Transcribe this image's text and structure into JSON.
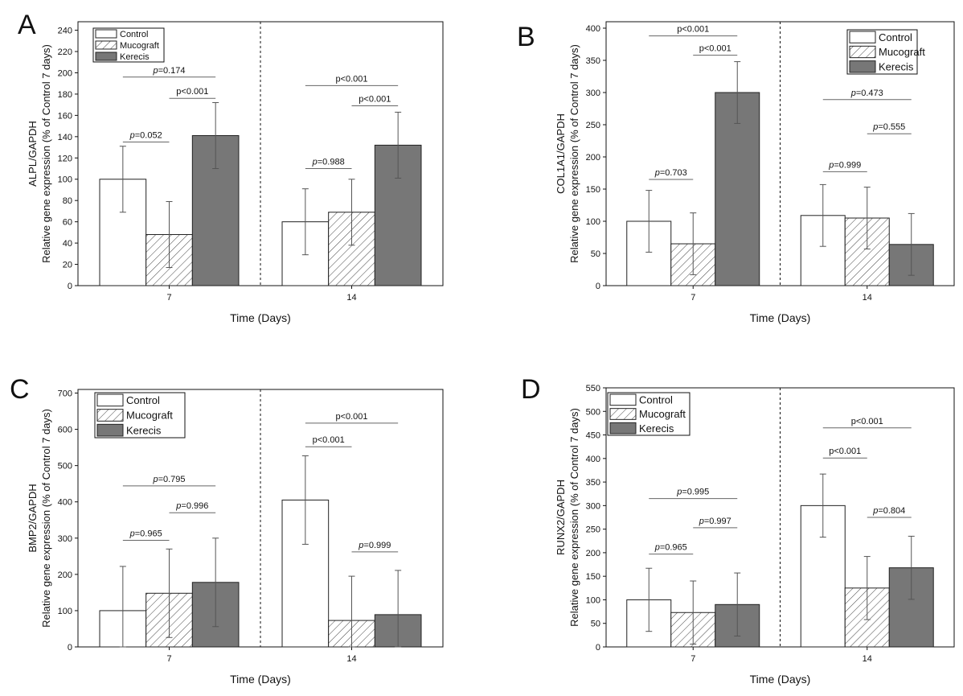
{
  "chart_data": [
    {
      "panel_letter": "A",
      "type": "bar",
      "ylabel_lines": [
        "Relative gene expression (% of Control 7 days)",
        "ALPL/GAPDH"
      ],
      "xlabel": "Time (Days)",
      "ylim": [
        0,
        248
      ],
      "yticks": [
        0,
        20,
        40,
        60,
        80,
        100,
        120,
        140,
        160,
        180,
        200,
        220,
        240
      ],
      "categories": [
        "7",
        "14"
      ],
      "legend_position": "top-left",
      "series": [
        {
          "name": "Control",
          "style": "white",
          "values": [
            100,
            60
          ],
          "errors": [
            31,
            31
          ]
        },
        {
          "name": "Mucograft",
          "style": "hatched",
          "values": [
            48,
            69
          ],
          "errors": [
            31,
            31
          ]
        },
        {
          "name": "Kerecis",
          "style": "gray",
          "values": [
            141,
            132
          ],
          "errors": [
            31,
            31
          ]
        }
      ],
      "annotations": [
        {
          "group": 0,
          "from": 0,
          "to": 1,
          "y": 135,
          "text": "=0.052",
          "italic_p": true
        },
        {
          "group": 0,
          "from": 1,
          "to": 2,
          "y": 176,
          "text": "p<0.001",
          "italic_p": false
        },
        {
          "group": 0,
          "from": 0,
          "to": 2,
          "y": 196,
          "text": "=0.174",
          "italic_p": true
        },
        {
          "group": 1,
          "from": 0,
          "to": 1,
          "y": 110,
          "text": "=0.988",
          "italic_p": true
        },
        {
          "group": 1,
          "from": 1,
          "to": 2,
          "y": 169,
          "text": "p<0.001",
          "italic_p": false
        },
        {
          "group": 1,
          "from": 0,
          "to": 2,
          "y": 188,
          "text": "p<0.001",
          "italic_p": false
        }
      ]
    },
    {
      "panel_letter": "B",
      "type": "bar",
      "ylabel_lines": [
        "Relative gene expression (% of Control 7 days)",
        "COL1A1/GAPDH"
      ],
      "xlabel": "Time (Days)",
      "ylim": [
        0,
        410
      ],
      "yticks": [
        0,
        50,
        100,
        150,
        200,
        250,
        300,
        350,
        400
      ],
      "categories": [
        "7",
        "14"
      ],
      "legend_position": "top-right",
      "series": [
        {
          "name": "Control",
          "style": "white",
          "values": [
            100,
            109
          ],
          "errors": [
            48,
            48
          ]
        },
        {
          "name": "Mucograft",
          "style": "hatched",
          "values": [
            65,
            105
          ],
          "errors": [
            48,
            48
          ]
        },
        {
          "name": "Kerecis",
          "style": "gray",
          "values": [
            300,
            64
          ],
          "errors": [
            48,
            48
          ]
        }
      ],
      "annotations": [
        {
          "group": 0,
          "from": 0,
          "to": 1,
          "y": 165,
          "text": "=0.703",
          "italic_p": true
        },
        {
          "group": 0,
          "from": 1,
          "to": 2,
          "y": 358,
          "text": "p<0.001",
          "italic_p": false
        },
        {
          "group": 0,
          "from": 0,
          "to": 2,
          "y": 388,
          "text": "p<0.001",
          "italic_p": false
        },
        {
          "group": 1,
          "from": 0,
          "to": 1,
          "y": 177,
          "text": "=0.999",
          "italic_p": true
        },
        {
          "group": 1,
          "from": 1,
          "to": 2,
          "y": 236,
          "text": "=0.555",
          "italic_p": true
        },
        {
          "group": 1,
          "from": 0,
          "to": 2,
          "y": 289,
          "text": "=0.473",
          "italic_p": true
        }
      ]
    },
    {
      "panel_letter": "C",
      "type": "bar",
      "ylabel_lines": [
        "Relative gene expression (% of Control 7 days)",
        "BMP2/GAPDH"
      ],
      "xlabel": "Time (Days)",
      "ylim": [
        0,
        710
      ],
      "yticks": [
        0,
        100,
        200,
        300,
        400,
        500,
        600,
        700
      ],
      "categories": [
        "7",
        "14"
      ],
      "legend_position": "top-left",
      "series": [
        {
          "name": "Control",
          "style": "white",
          "values": [
            100,
            405
          ],
          "errors": [
            122,
            122
          ]
        },
        {
          "name": "Mucograft",
          "style": "hatched",
          "values": [
            148,
            73
          ],
          "errors": [
            122,
            122
          ]
        },
        {
          "name": "Kerecis",
          "style": "gray",
          "values": [
            178,
            89
          ],
          "errors": [
            122,
            122
          ]
        }
      ],
      "annotations": [
        {
          "group": 0,
          "from": 0,
          "to": 1,
          "y": 294,
          "text": "=0.965",
          "italic_p": true
        },
        {
          "group": 0,
          "from": 1,
          "to": 2,
          "y": 370,
          "text": "=0.996",
          "italic_p": true
        },
        {
          "group": 0,
          "from": 0,
          "to": 2,
          "y": 444,
          "text": "=0.795",
          "italic_p": true
        },
        {
          "group": 1,
          "from": 0,
          "to": 1,
          "y": 552,
          "text": "p<0.001",
          "italic_p": false
        },
        {
          "group": 1,
          "from": 1,
          "to": 2,
          "y": 262,
          "text": "=0.999",
          "italic_p": true
        },
        {
          "group": 1,
          "from": 0,
          "to": 2,
          "y": 617,
          "text": "p<0.001",
          "italic_p": false
        }
      ]
    },
    {
      "panel_letter": "D",
      "type": "bar",
      "ylabel_lines": [
        "Relative gene expression (% of Control 7 days)",
        "RUNX2/GAPDH"
      ],
      "xlabel": "Time (Days)",
      "ylim": [
        0,
        550
      ],
      "yticks": [
        0,
        50,
        100,
        150,
        200,
        250,
        300,
        350,
        400,
        450,
        500,
        550
      ],
      "categories": [
        "7",
        "14"
      ],
      "legend_position": "top-left",
      "series": [
        {
          "name": "Control",
          "style": "white",
          "values": [
            100,
            300
          ],
          "errors": [
            67,
            67
          ]
        },
        {
          "name": "Mucograft",
          "style": "hatched",
          "values": [
            73,
            125
          ],
          "errors": [
            67,
            67
          ]
        },
        {
          "name": "Kerecis",
          "style": "gray",
          "values": [
            90,
            168
          ],
          "errors": [
            67,
            67
          ]
        }
      ],
      "annotations": [
        {
          "group": 0,
          "from": 0,
          "to": 1,
          "y": 197,
          "text": "=0.965",
          "italic_p": true
        },
        {
          "group": 0,
          "from": 1,
          "to": 2,
          "y": 253,
          "text": "=0.997",
          "italic_p": true
        },
        {
          "group": 0,
          "from": 0,
          "to": 2,
          "y": 315,
          "text": "=0.995",
          "italic_p": true
        },
        {
          "group": 1,
          "from": 0,
          "to": 1,
          "y": 401,
          "text": "p<0.001",
          "italic_p": false
        },
        {
          "group": 1,
          "from": 1,
          "to": 2,
          "y": 275,
          "text": "=0.804",
          "italic_p": true
        },
        {
          "group": 1,
          "from": 0,
          "to": 2,
          "y": 465,
          "text": "p<0.001",
          "italic_p": false
        }
      ]
    }
  ],
  "colors": {
    "control_fill": "#ffffff",
    "kerecis_fill": "#777777",
    "hatch_stroke": "#444444",
    "bar_stroke": "#222222"
  }
}
